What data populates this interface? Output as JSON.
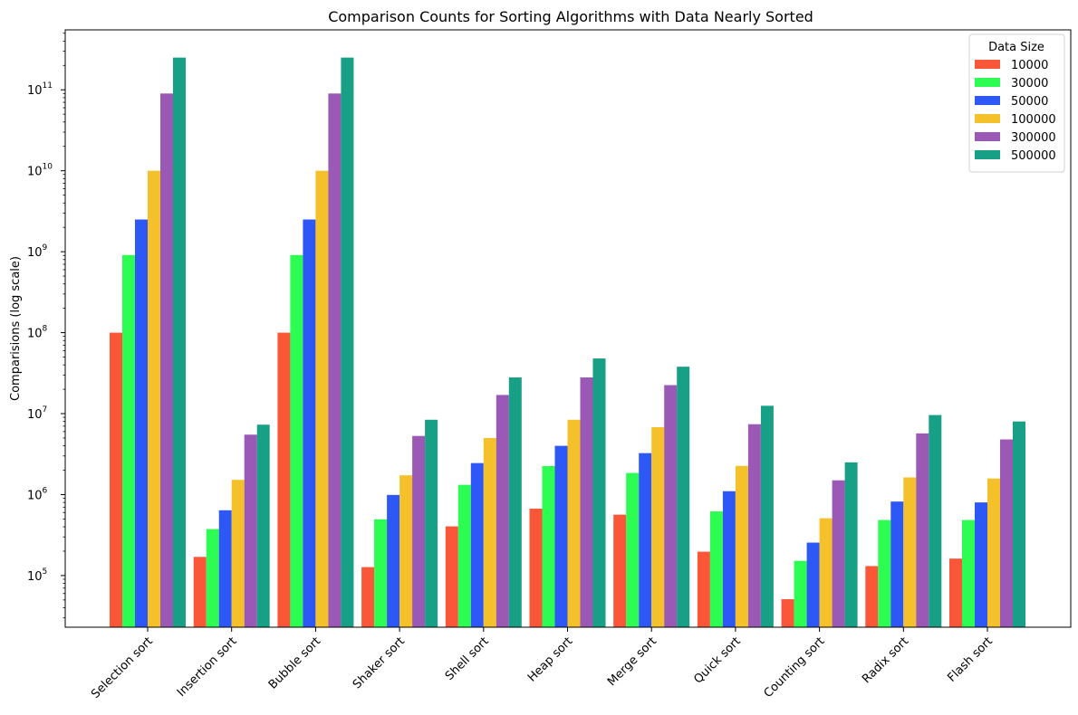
{
  "chart_data": {
    "type": "bar",
    "title": "Comparison Counts for Sorting Algorithms with Data Nearly Sorted",
    "xlabel": "",
    "ylabel": "Comparisions (log scale)",
    "yscale": "log",
    "ylim": [
      23000,
      550000000000
    ],
    "categories": [
      "Selection sort",
      "Insertion sort",
      "Bubble sort",
      "Shaker sort",
      "Shell sort",
      "Heap sort",
      "Merge sort",
      "Quick sort",
      "Counting sort",
      "Radix sort",
      "Flash sort"
    ],
    "legend": {
      "title": "Data Size",
      "position": "top-right"
    },
    "grid": false,
    "series": [
      {
        "name": "10000",
        "color": "#f95738",
        "values": [
          100000000,
          170000,
          100000000,
          127000,
          405000,
          670000,
          565000,
          197000,
          51000,
          131000,
          162000
        ]
      },
      {
        "name": "30000",
        "color": "#2dfc53",
        "values": [
          910000000,
          375000,
          910000000,
          495000,
          1320000,
          2250000,
          1850000,
          620000,
          152000,
          485000,
          485000
        ]
      },
      {
        "name": "50000",
        "color": "#2e58f5",
        "values": [
          2500000000,
          640000,
          2500000000,
          990000,
          2450000,
          4000000,
          3250000,
          1100000,
          255000,
          820000,
          800000
        ]
      },
      {
        "name": "100000",
        "color": "#f4c12b",
        "values": [
          10000000000,
          1520000,
          10000000000,
          1730000,
          5000000,
          8400000,
          6800000,
          2260000,
          510000,
          1630000,
          1580000
        ]
      },
      {
        "name": "300000",
        "color": "#9b59b6",
        "values": [
          90000000000,
          5500000,
          90000000000,
          5300000,
          17000000,
          28000000,
          22500000,
          7400000,
          1500000,
          5700000,
          4800000
        ]
      },
      {
        "name": "500000",
        "color": "#17a085",
        "values": [
          250000000000,
          7300000,
          250000000000,
          8400000,
          28000000,
          48000000,
          38000000,
          12500000,
          2500000,
          9600000,
          8000000
        ]
      }
    ],
    "yticks": [
      {
        "base": "10",
        "exp": "5",
        "value": 100000
      },
      {
        "base": "10",
        "exp": "6",
        "value": 1000000
      },
      {
        "base": "10",
        "exp": "7",
        "value": 10000000
      },
      {
        "base": "10",
        "exp": "8",
        "value": 100000000
      },
      {
        "base": "10",
        "exp": "9",
        "value": 1000000000
      },
      {
        "base": "10",
        "exp": "10",
        "value": 10000000000
      },
      {
        "base": "10",
        "exp": "11",
        "value": 100000000000
      }
    ]
  }
}
